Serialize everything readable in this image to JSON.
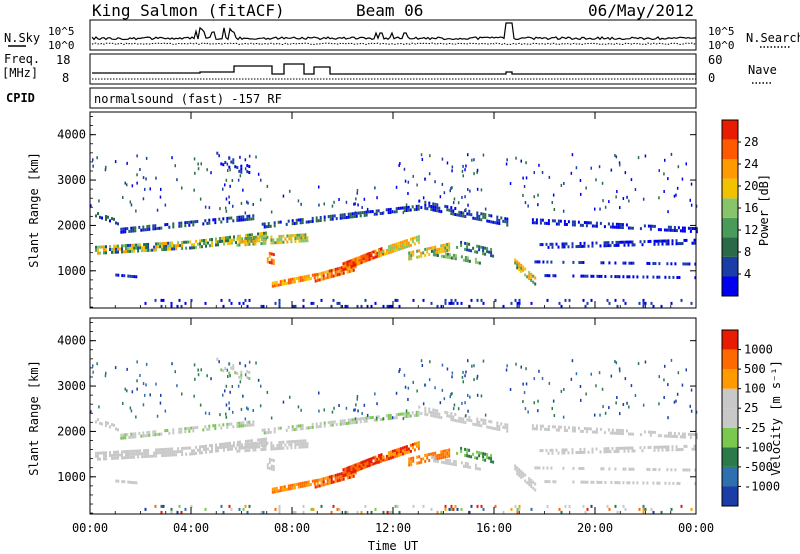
{
  "header": {
    "station": "King Salmon (fitACF)",
    "beam": "Beam 06",
    "date": "06/May/2012"
  },
  "top_panels": {
    "nsky_label": "N.Sky",
    "nsky_ticks": [
      "10^5",
      "10^0"
    ],
    "nsearch_label": "N.Search",
    "nsearch_ticks": [
      "10^5",
      "10^0"
    ],
    "freq_label": "Freq.",
    "freq_unit": "[MHz]",
    "freq_ticks": [
      "18",
      "8"
    ],
    "nave_label": "Nave",
    "nave_ticks": [
      "60",
      "0"
    ],
    "cpid_label": "CPID",
    "cpid_text": "normalsound (fast) -157 RF"
  },
  "colors": {
    "power": [
      "#0000ee",
      "#1a3da8",
      "#2a6a48",
      "#4a9a5a",
      "#88c46a",
      "#f2c200",
      "#ff9a00",
      "#ff5a00",
      "#e81c00"
    ],
    "velocity": [
      "#1a3da8",
      "#2e6fb0",
      "#2a7a4a",
      "#7ac850",
      "#c8c8c8",
      "#c8c8c8",
      "#ff9a00",
      "#ff6a00",
      "#e81c00"
    ]
  },
  "chart_data": [
    {
      "type": "heatmap",
      "xlabel": "Time UT",
      "ylabel": "Slant Range [km]",
      "x_ticks": [
        "00:00",
        "04:00",
        "08:00",
        "12:00",
        "16:00",
        "20:00",
        "00:00"
      ],
      "x_range_hours": [
        0,
        24
      ],
      "y_ticks": [
        "4000",
        "3000",
        "2000",
        "1000"
      ],
      "ylim": [
        180,
        4500
      ],
      "colorbar_label": "Power [dB]",
      "colorbar_ticks": [
        "28",
        "24",
        "20",
        "16",
        "12",
        "8",
        "4"
      ],
      "colorbar_range": [
        0,
        30
      ]
    },
    {
      "type": "heatmap",
      "xlabel": "Time UT",
      "ylabel": "Slant Range [km]",
      "x_ticks": [
        "00:00",
        "04:00",
        "08:00",
        "12:00",
        "16:00",
        "20:00",
        "00:00"
      ],
      "x_range_hours": [
        0,
        24
      ],
      "y_ticks": [
        "4000",
        "3000",
        "2000",
        "1000"
      ],
      "ylim": [
        180,
        4500
      ],
      "colorbar_label": "Velocity [m s⁻¹]",
      "colorbar_ticks": [
        "1000",
        "500",
        "100",
        "25",
        "-25",
        "-100",
        "-500",
        "-1000"
      ]
    }
  ]
}
